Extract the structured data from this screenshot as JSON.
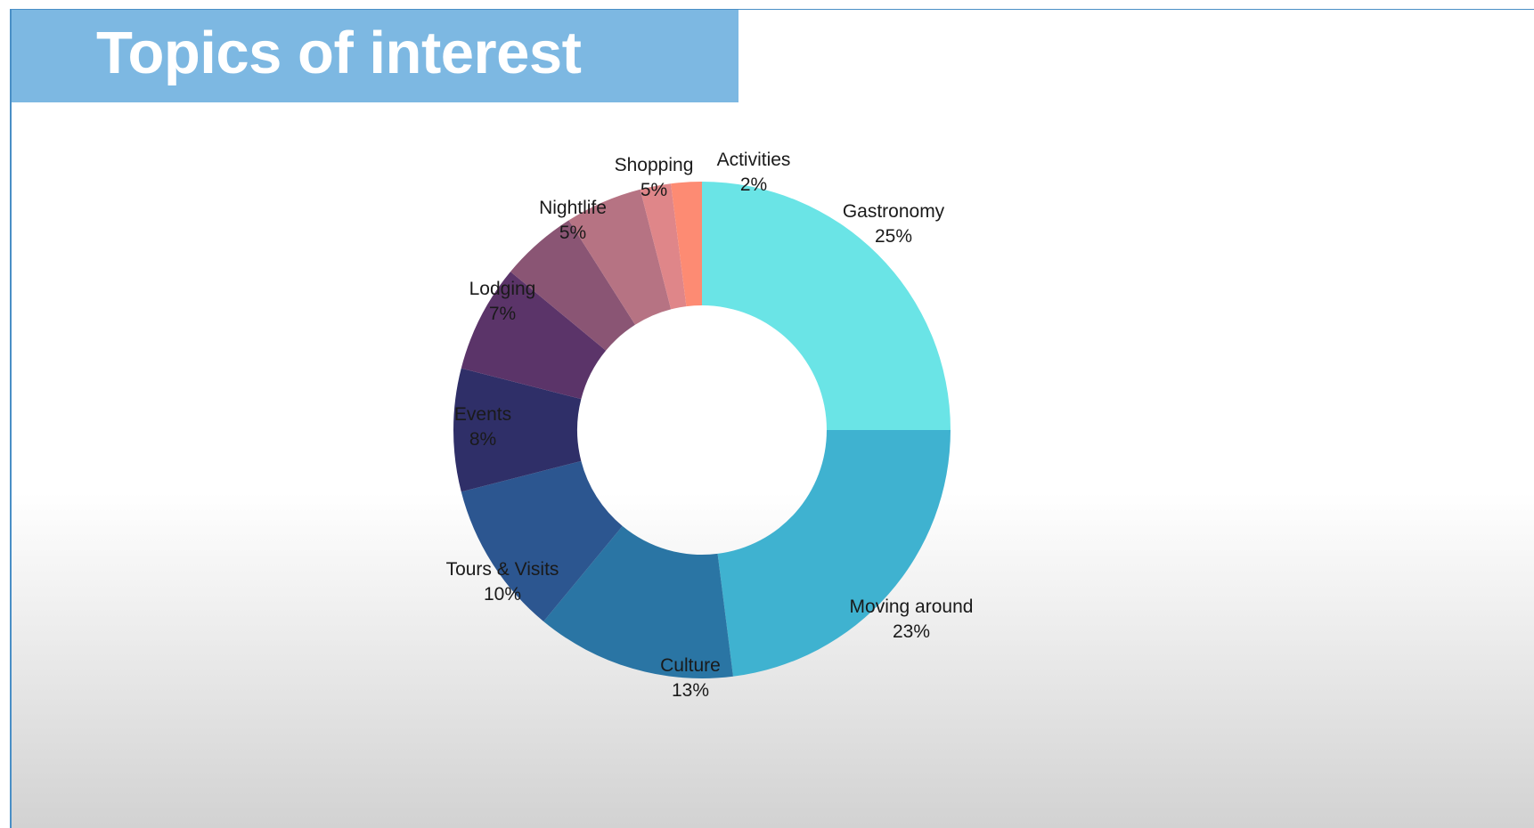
{
  "slide": {
    "title": "Topics of interest"
  },
  "chart_data": {
    "type": "pie",
    "donut": true,
    "title": "",
    "start": "12 o'clock, clockwise",
    "slices": [
      {
        "label": "Gastronomy",
        "percent_label": "25%",
        "value": 25,
        "color": "#6ae4e6"
      },
      {
        "label": "Moving around",
        "percent_label": "23%",
        "value": 23,
        "color": "#3fb2d0"
      },
      {
        "label": "Culture",
        "percent_label": "13%",
        "value": 13,
        "color": "#2a75a4"
      },
      {
        "label": "Tours & Visits",
        "percent_label": "10%",
        "value": 10,
        "color": "#2c5690"
      },
      {
        "label": "Events",
        "percent_label": "8%",
        "value": 8,
        "color": "#2f2f68"
      },
      {
        "label": "Lodging",
        "percent_label": "7%",
        "value": 7,
        "color": "#5b3469"
      },
      {
        "label": "Nightlife",
        "percent_label": "5%",
        "value": 5,
        "color": "#8a5574"
      },
      {
        "label": "Shopping",
        "percent_label": "5%",
        "value": 5,
        "color": "#b67383"
      },
      {
        "label": "",
        "percent_label": "",
        "value": 2,
        "color": "#df8689"
      },
      {
        "label": "Activities",
        "percent_label": "2%",
        "value": 2,
        "color": "#fd8b73"
      }
    ]
  }
}
